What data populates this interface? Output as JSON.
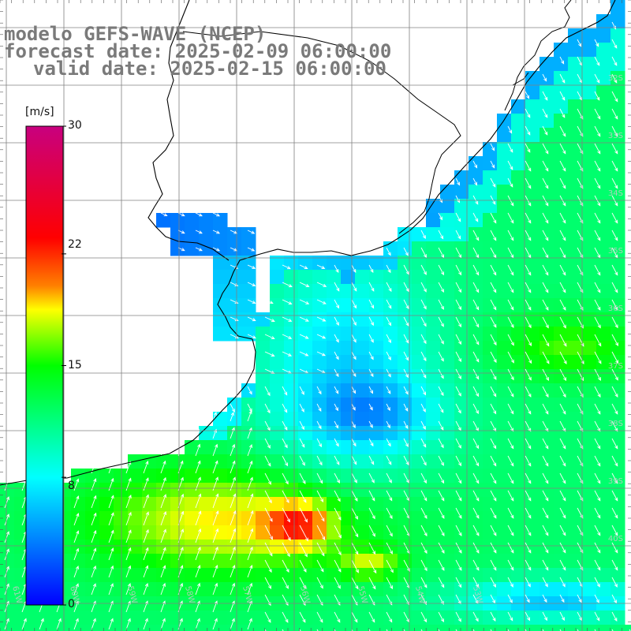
{
  "titles": {
    "line1": "modelo GEFS-WAVE (NCEP)",
    "line2": "forecast date: 2025-02-09 06:00:00",
    "line3": "valid date: 2025-02-15 06:00:00"
  },
  "colorbar": {
    "unit": "[m/s]",
    "ticks": [
      "30",
      "22",
      "15",
      "8",
      "0"
    ],
    "tick_values": [
      30,
      22,
      15,
      8,
      0
    ],
    "min": 0,
    "max": 30,
    "colors": [
      "#0000ff",
      "#00ffff",
      "#00ff00",
      "#ffff00",
      "#ff8000",
      "#ff0000",
      "#c8007f"
    ]
  },
  "map": {
    "lon_labels": [
      "61W",
      "60W",
      "59W",
      "58W",
      "57W",
      "56W",
      "55W",
      "54W",
      "53W"
    ],
    "lat_labels": [
      "32S",
      "33S",
      "34S",
      "35S",
      "36S",
      "37S",
      "38S",
      "39S",
      "40S"
    ],
    "land_color": "#ffffff",
    "grid_color": "#808080",
    "vector_color": "#ffffff"
  }
}
